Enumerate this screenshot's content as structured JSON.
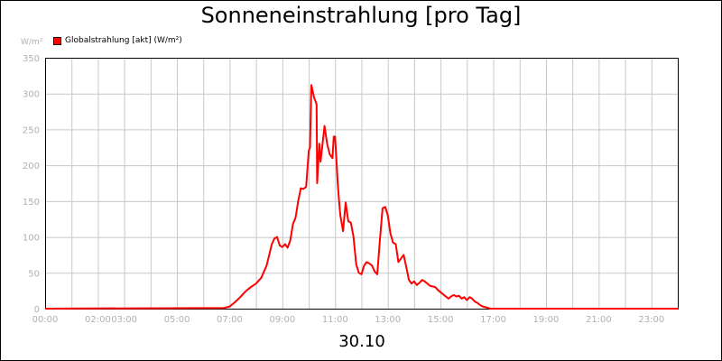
{
  "title": "Sonneneinstrahlung [pro Tag]",
  "y_unit": "W/m²",
  "date": "30.10",
  "legend": [
    {
      "label": "Globalstrahlung [akt] (W/m²)",
      "color": "#ff0000"
    }
  ],
  "chart_data": {
    "type": "line",
    "title": "Sonneneinstrahlung [pro Tag]",
    "xlabel": "30.10",
    "ylabel": "W/m²",
    "xlim": [
      0,
      24
    ],
    "ylim": [
      0,
      350
    ],
    "grid": true,
    "legend_position": "top-left",
    "y_ticks": [
      "0",
      "50",
      "100",
      "150",
      "200",
      "250",
      "300",
      "350"
    ],
    "x_ticks": [
      {
        "value": 0,
        "label": "00:00"
      },
      {
        "value": 2,
        "label": "02:00"
      },
      {
        "value": 3,
        "label": "03:00"
      },
      {
        "value": 5,
        "label": "05:00"
      },
      {
        "value": 7,
        "label": "07:00"
      },
      {
        "value": 9,
        "label": "09:00"
      },
      {
        "value": 11,
        "label": "11:00"
      },
      {
        "value": 13,
        "label": "13:00"
      },
      {
        "value": 15,
        "label": "15:00"
      },
      {
        "value": 17,
        "label": "17:00"
      },
      {
        "value": 19,
        "label": "19:00"
      },
      {
        "value": 21,
        "label": "21:00"
      },
      {
        "value": 23,
        "label": "23:00"
      }
    ],
    "grid_x": [
      0,
      1,
      2,
      3,
      4,
      5,
      6,
      7,
      8,
      9,
      10,
      11,
      12,
      13,
      14,
      15,
      16,
      17,
      18,
      19,
      20,
      21,
      22,
      23,
      24
    ],
    "series": [
      {
        "name": "Globalstrahlung [akt] (W/m²)",
        "color": "#ff0000",
        "x": [
          0,
          6.8,
          7.0,
          7.2,
          7.4,
          7.6,
          7.8,
          8.0,
          8.2,
          8.4,
          8.6,
          8.7,
          8.8,
          8.9,
          9.0,
          9.1,
          9.2,
          9.3,
          9.4,
          9.5,
          9.6,
          9.7,
          9.8,
          9.9,
          10.0,
          10.05,
          10.1,
          10.2,
          10.3,
          10.32,
          10.4,
          10.45,
          10.5,
          10.6,
          10.7,
          10.8,
          10.9,
          10.95,
          11.0,
          11.1,
          11.15,
          11.2,
          11.3,
          11.4,
          11.5,
          11.6,
          11.7,
          11.8,
          11.9,
          12.0,
          12.1,
          12.2,
          12.3,
          12.4,
          12.5,
          12.6,
          12.7,
          12.8,
          12.9,
          13.0,
          13.1,
          13.2,
          13.3,
          13.4,
          13.5,
          13.6,
          13.7,
          13.8,
          13.9,
          14.0,
          14.1,
          14.2,
          14.3,
          14.4,
          14.5,
          14.6,
          14.7,
          14.8,
          14.9,
          15.0,
          15.1,
          15.2,
          15.3,
          15.4,
          15.5,
          15.6,
          15.7,
          15.8,
          15.9,
          16.0,
          16.1,
          16.2,
          16.3,
          16.4,
          16.5,
          16.6,
          16.7,
          16.8,
          16.9,
          17.0,
          17.2,
          24
        ],
        "values": [
          0,
          1,
          3,
          9,
          16,
          24,
          30,
          35,
          43,
          60,
          90,
          98,
          100,
          88,
          86,
          90,
          85,
          95,
          118,
          127,
          150,
          168,
          167,
          170,
          220,
          225,
          312,
          295,
          285,
          175,
          230,
          205,
          222,
          255,
          230,
          215,
          210,
          240,
          240,
          175,
          150,
          130,
          108,
          148,
          122,
          120,
          100,
          62,
          50,
          48,
          60,
          65,
          63,
          60,
          52,
          48,
          95,
          140,
          142,
          130,
          105,
          92,
          90,
          65,
          70,
          75,
          58,
          40,
          35,
          38,
          33,
          36,
          40,
          38,
          35,
          32,
          31,
          30,
          26,
          23,
          20,
          17,
          14,
          17,
          19,
          17,
          18,
          14,
          16,
          12,
          16,
          14,
          10,
          8,
          5,
          3,
          2,
          1,
          0,
          0,
          0,
          0
        ]
      }
    ]
  }
}
